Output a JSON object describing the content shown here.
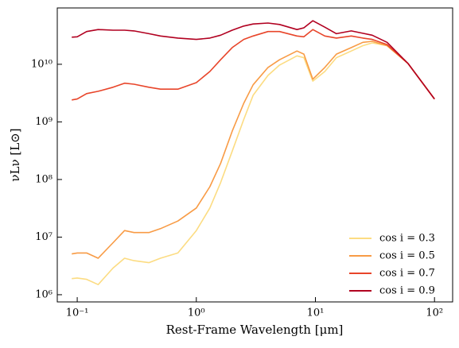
{
  "chart_data": {
    "type": "line",
    "xlabel": "Rest-Frame Wavelength [μm]",
    "ylabel": "νLν [L⊙]",
    "xscale": "log",
    "yscale": "log",
    "xlim": [
      0.068,
      142
    ],
    "ylim": [
      750000,
      95000000000
    ],
    "xticks": [
      {
        "value": 0.1,
        "label": "10⁻¹"
      },
      {
        "value": 1,
        "label": "10⁰"
      },
      {
        "value": 10,
        "label": "10¹"
      },
      {
        "value": 100,
        "label": "10²"
      }
    ],
    "yticks": [
      {
        "value": 1000000,
        "label": "10⁶"
      },
      {
        "value": 10000000,
        "label": "10⁷"
      },
      {
        "value": 100000000,
        "label": "10⁸"
      },
      {
        "value": 1000000000,
        "label": "10⁹"
      },
      {
        "value": 10000000000,
        "label": "10¹⁰"
      }
    ],
    "legend": "lower right",
    "x": [
      0.09,
      0.1,
      0.12,
      0.15,
      0.2,
      0.25,
      0.3,
      0.4,
      0.5,
      0.7,
      1,
      1.3,
      1.6,
      2,
      2.5,
      3,
      4,
      5,
      7,
      8,
      9.5,
      12,
      15,
      20,
      25,
      30,
      40,
      60,
      100
    ],
    "series": [
      {
        "name": "cos i = 0.3",
        "color": "#fcdc82",
        "values": [
          1900000.0,
          1950000.0,
          1850000.0,
          1500000.0,
          2900000.0,
          4300000.0,
          3900000.0,
          3600000.0,
          4300000.0,
          5300000.0,
          13000000.0,
          32000000.0,
          88000000.0,
          310000000.0,
          1100000000.0,
          2900000000.0,
          6400000000.0,
          9700000000.0,
          14000000000.0,
          13000000000.0,
          5100000000.0,
          7500000000.0,
          13000000000.0,
          17000000000.0,
          21000000000.0,
          23500000000.0,
          21000000000.0,
          10300000000.0,
          2500000000.0
        ]
      },
      {
        "name": "cos i = 0.5",
        "color": "#f89b45",
        "values": [
          5100000.0,
          5300000.0,
          5300000.0,
          4300000.0,
          8000000.0,
          13000000.0,
          12000000.0,
          12000000.0,
          14000000.0,
          19000000.0,
          32000000.0,
          75000000.0,
          190000000.0,
          690000000.0,
          2100000000.0,
          4400000000.0,
          8800000000.0,
          12000000000.0,
          17000000000.0,
          15000000000.0,
          5500000000.0,
          8800000000.0,
          15000000000.0,
          19500000000.0,
          24000000000.0,
          25000000000.0,
          21000000000.0,
          10300000000.0,
          2500000000.0
        ]
      },
      {
        "name": "cos i = 0.7",
        "color": "#e8452a",
        "values": [
          2400000000.0,
          2500000000.0,
          3100000000.0,
          3400000000.0,
          4000000000.0,
          4700000000.0,
          4500000000.0,
          4000000000.0,
          3700000000.0,
          3700000000.0,
          4800000000.0,
          7500000000.0,
          12000000000.0,
          19500000000.0,
          27000000000.0,
          31000000000.0,
          37000000000.0,
          37000000000.0,
          31000000000.0,
          30000000000.0,
          40000000000.0,
          31000000000.0,
          28500000000.0,
          31000000000.0,
          28500000000.0,
          27000000000.0,
          22000000000.0,
          10300000000.0,
          2500000000.0
        ]
      },
      {
        "name": "cos i = 0.9",
        "color": "#b10020",
        "values": [
          29500000000.0,
          30000000000.0,
          37000000000.0,
          40000000000.0,
          39000000000.0,
          39000000000.0,
          38000000000.0,
          34000000000.0,
          31000000000.0,
          28500000000.0,
          27000000000.0,
          28500000000.0,
          32000000000.0,
          39000000000.0,
          46000000000.0,
          50000000000.0,
          52000000000.0,
          49000000000.0,
          40000000000.0,
          43000000000.0,
          57000000000.0,
          44000000000.0,
          34000000000.0,
          38000000000.0,
          34500000000.0,
          32000000000.0,
          24000000000.0,
          10300000000.0,
          2500000000.0
        ]
      }
    ]
  }
}
